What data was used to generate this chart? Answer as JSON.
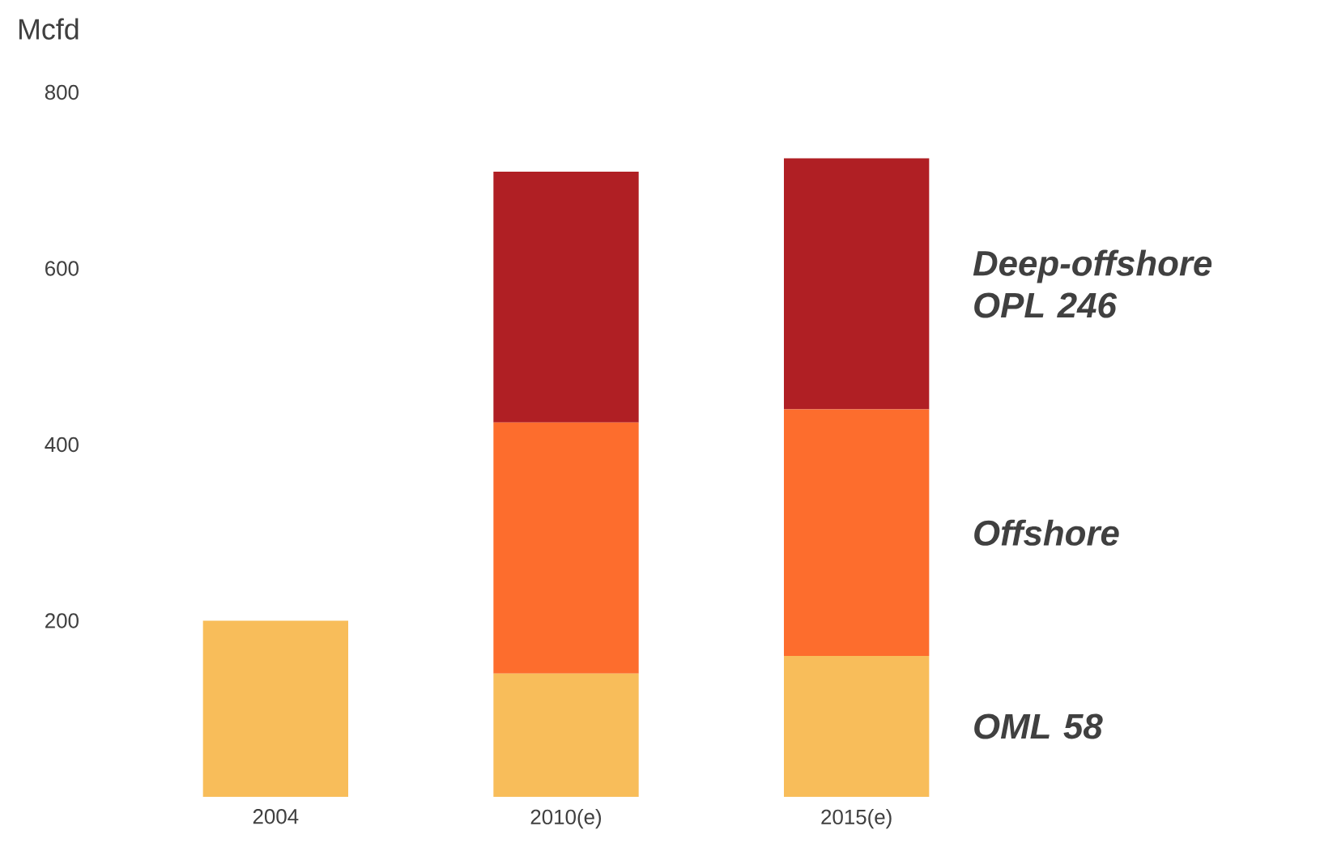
{
  "chart_data": {
    "type": "bar",
    "stacked": true,
    "ylabel": "Mcfd",
    "categories": [
      "2004",
      "2010(e)",
      "2015(e)"
    ],
    "ylim": [
      0,
      800
    ],
    "yticks": [
      200,
      400,
      600,
      800
    ],
    "series": [
      {
        "name": "OML 58",
        "color": "#f8bd5a",
        "values": [
          200,
          140,
          160
        ]
      },
      {
        "name": "Offshore",
        "color": "#fd6d2d",
        "values": [
          0,
          285,
          280
        ]
      },
      {
        "name": "Deep-offshore OPL 246",
        "color": "#b01f24",
        "values": [
          0,
          285,
          285
        ]
      }
    ]
  }
}
